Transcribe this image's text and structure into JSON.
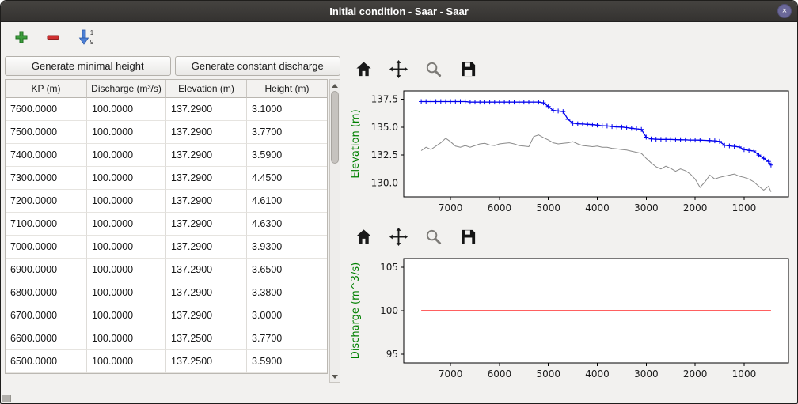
{
  "window": {
    "title": "Initial condition - Saar - Saar"
  },
  "icons": {
    "close_glyph": "×",
    "sort_top_digit": "1",
    "sort_bottom_digit": "9"
  },
  "buttons": {
    "generate_minimal_height": "Generate minimal height",
    "generate_constant_discharge": "Generate constant discharge"
  },
  "table": {
    "headers": [
      "KP (m)",
      "Discharge (m³/s)",
      "Elevation (m)",
      "Height (m)"
    ],
    "rows": [
      [
        "7600.0000",
        "100.0000",
        "137.2900",
        "3.1000"
      ],
      [
        "7500.0000",
        "100.0000",
        "137.2900",
        "3.7700"
      ],
      [
        "7400.0000",
        "100.0000",
        "137.2900",
        "3.5900"
      ],
      [
        "7300.0000",
        "100.0000",
        "137.2900",
        "4.4500"
      ],
      [
        "7200.0000",
        "100.0000",
        "137.2900",
        "4.6100"
      ],
      [
        "7100.0000",
        "100.0000",
        "137.2900",
        "4.6300"
      ],
      [
        "7000.0000",
        "100.0000",
        "137.2900",
        "3.9300"
      ],
      [
        "6900.0000",
        "100.0000",
        "137.2900",
        "3.6500"
      ],
      [
        "6800.0000",
        "100.0000",
        "137.2900",
        "3.3800"
      ],
      [
        "6700.0000",
        "100.0000",
        "137.2900",
        "3.0000"
      ],
      [
        "6600.0000",
        "100.0000",
        "137.2500",
        "3.7700"
      ],
      [
        "6500.0000",
        "100.0000",
        "137.2500",
        "3.5900"
      ]
    ]
  },
  "chart_data": [
    {
      "type": "line",
      "name": "elevation",
      "title": "",
      "xlabel": "",
      "ylabel": "Elevation (m)",
      "ylabel_color": "#008000",
      "xlim": [
        7957,
        93
      ],
      "ylim": [
        128.75,
        138.25
      ],
      "xticks": [
        7000,
        6000,
        5000,
        4000,
        3000,
        2000,
        1000
      ],
      "yticks": [
        130.0,
        132.5,
        135.0,
        137.5
      ],
      "ytick_labels": [
        "130.0",
        "132.5",
        "135.0",
        "137.5"
      ],
      "grid": false,
      "legend": "none",
      "series": [
        {
          "name": "river-bottom",
          "color": "#8a8a8a",
          "width": 1,
          "marker": "none",
          "points": [
            [
              7600,
              132.9
            ],
            [
              7500,
              133.2
            ],
            [
              7400,
              133.0
            ],
            [
              7300,
              133.3
            ],
            [
              7200,
              133.6
            ],
            [
              7100,
              134.0
            ],
            [
              7000,
              133.7
            ],
            [
              6900,
              133.3
            ],
            [
              6800,
              133.2
            ],
            [
              6700,
              133.35
            ],
            [
              6600,
              133.2
            ],
            [
              6500,
              133.35
            ],
            [
              6400,
              133.5
            ],
            [
              6300,
              133.55
            ],
            [
              6200,
              133.4
            ],
            [
              6100,
              133.35
            ],
            [
              6000,
              133.5
            ],
            [
              5900,
              133.55
            ],
            [
              5800,
              133.6
            ],
            [
              5700,
              133.5
            ],
            [
              5600,
              133.35
            ],
            [
              5500,
              133.3
            ],
            [
              5400,
              133.25
            ],
            [
              5300,
              134.15
            ],
            [
              5200,
              134.3
            ],
            [
              5100,
              134.05
            ],
            [
              5000,
              133.85
            ],
            [
              4900,
              133.6
            ],
            [
              4800,
              133.5
            ],
            [
              4700,
              133.55
            ],
            [
              4600,
              133.6
            ],
            [
              4500,
              133.7
            ],
            [
              4400,
              133.5
            ],
            [
              4300,
              133.35
            ],
            [
              4200,
              133.3
            ],
            [
              4100,
              133.25
            ],
            [
              4000,
              133.3
            ],
            [
              3900,
              133.2
            ],
            [
              3800,
              133.2
            ],
            [
              3700,
              133.1
            ],
            [
              3600,
              133.05
            ],
            [
              3500,
              133.0
            ],
            [
              3400,
              132.95
            ],
            [
              3300,
              132.85
            ],
            [
              3200,
              132.75
            ],
            [
              3100,
              132.65
            ],
            [
              3000,
              132.2
            ],
            [
              2900,
              131.8
            ],
            [
              2800,
              131.45
            ],
            [
              2700,
              131.25
            ],
            [
              2600,
              131.5
            ],
            [
              2500,
              131.3
            ],
            [
              2400,
              131.05
            ],
            [
              2300,
              131.25
            ],
            [
              2200,
              131.1
            ],
            [
              2100,
              130.8
            ],
            [
              2000,
              130.35
            ],
            [
              1900,
              129.6
            ],
            [
              1800,
              130.1
            ],
            [
              1700,
              130.7
            ],
            [
              1600,
              130.35
            ],
            [
              1500,
              130.5
            ],
            [
              1400,
              130.6
            ],
            [
              1300,
              130.7
            ],
            [
              1200,
              130.8
            ],
            [
              1100,
              130.6
            ],
            [
              1000,
              130.5
            ],
            [
              900,
              130.35
            ],
            [
              800,
              130.1
            ],
            [
              700,
              129.7
            ],
            [
              600,
              129.35
            ],
            [
              500,
              129.7
            ],
            [
              450,
              129.2
            ]
          ]
        },
        {
          "name": "water-elevation",
          "color": "#0000ee",
          "width": 1.3,
          "marker": "plus",
          "points": [
            [
              7600,
              137.29
            ],
            [
              7500,
              137.29
            ],
            [
              7400,
              137.29
            ],
            [
              7300,
              137.29
            ],
            [
              7200,
              137.29
            ],
            [
              7100,
              137.29
            ],
            [
              7000,
              137.29
            ],
            [
              6900,
              137.29
            ],
            [
              6800,
              137.29
            ],
            [
              6700,
              137.29
            ],
            [
              6600,
              137.25
            ],
            [
              6500,
              137.25
            ],
            [
              6400,
              137.25
            ],
            [
              6300,
              137.25
            ],
            [
              6200,
              137.25
            ],
            [
              6100,
              137.25
            ],
            [
              6000,
              137.25
            ],
            [
              5900,
              137.25
            ],
            [
              5800,
              137.25
            ],
            [
              5700,
              137.25
            ],
            [
              5600,
              137.25
            ],
            [
              5500,
              137.25
            ],
            [
              5400,
              137.25
            ],
            [
              5300,
              137.25
            ],
            [
              5200,
              137.25
            ],
            [
              5100,
              137.18
            ],
            [
              5000,
              136.85
            ],
            [
              4900,
              136.5
            ],
            [
              4800,
              136.45
            ],
            [
              4700,
              136.4
            ],
            [
              4600,
              135.7
            ],
            [
              4500,
              135.35
            ],
            [
              4400,
              135.3
            ],
            [
              4300,
              135.28
            ],
            [
              4200,
              135.25
            ],
            [
              4100,
              135.22
            ],
            [
              4000,
              135.18
            ],
            [
              3900,
              135.12
            ],
            [
              3800,
              135.1
            ],
            [
              3700,
              135.05
            ],
            [
              3600,
              135.02
            ],
            [
              3500,
              135.0
            ],
            [
              3400,
              134.95
            ],
            [
              3300,
              134.9
            ],
            [
              3200,
              134.85
            ],
            [
              3100,
              134.8
            ],
            [
              3000,
              134.1
            ],
            [
              2900,
              133.95
            ],
            [
              2800,
              133.92
            ],
            [
              2700,
              133.9
            ],
            [
              2600,
              133.9
            ],
            [
              2500,
              133.9
            ],
            [
              2400,
              133.88
            ],
            [
              2300,
              133.87
            ],
            [
              2200,
              133.86
            ],
            [
              2100,
              133.85
            ],
            [
              2000,
              133.85
            ],
            [
              1900,
              133.84
            ],
            [
              1800,
              133.82
            ],
            [
              1700,
              133.8
            ],
            [
              1600,
              133.78
            ],
            [
              1500,
              133.72
            ],
            [
              1400,
              133.38
            ],
            [
              1300,
              133.32
            ],
            [
              1200,
              133.28
            ],
            [
              1100,
              133.22
            ],
            [
              1000,
              132.98
            ],
            [
              900,
              132.92
            ],
            [
              800,
              132.86
            ],
            [
              700,
              132.5
            ],
            [
              600,
              132.2
            ],
            [
              500,
              131.92
            ],
            [
              450,
              131.6
            ]
          ]
        }
      ]
    },
    {
      "type": "line",
      "name": "discharge",
      "title": "",
      "xlabel": "",
      "ylabel": "Discharge (m^3/s)",
      "ylabel_color": "#008000",
      "xlim": [
        7957,
        93
      ],
      "ylim": [
        94,
        106
      ],
      "xticks": [
        7000,
        6000,
        5000,
        4000,
        3000,
        2000,
        1000
      ],
      "yticks": [
        95,
        100,
        105
      ],
      "ytick_labels": [
        "95",
        "100",
        "105"
      ],
      "grid": false,
      "legend": "none",
      "series": [
        {
          "name": "constant-discharge",
          "color": "#ff0000",
          "width": 1.2,
          "marker": "none",
          "points": [
            [
              7600,
              100
            ],
            [
              450,
              100
            ]
          ]
        }
      ]
    }
  ]
}
